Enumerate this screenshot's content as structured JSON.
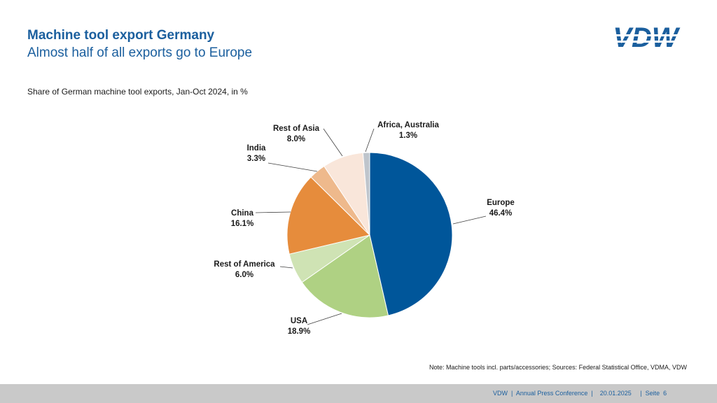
{
  "header": {
    "title": "Machine tool export Germany",
    "subtitle": "Almost half of all exports go to Europe",
    "logo_text": "VDW"
  },
  "caption": "Share of German machine tool exports, Jan-Oct 2024, in %",
  "chart_data": {
    "type": "pie",
    "title": "",
    "labels": [
      "Europe",
      "USA",
      "Rest of America",
      "China",
      "India",
      "Rest of Asia",
      "Africa, Australia"
    ],
    "values": [
      46.4,
      18.9,
      6.0,
      16.1,
      3.3,
      8.0,
      1.3
    ],
    "value_labels": [
      "46.4%",
      "18.9%",
      "6.0%",
      "16.1%",
      "3.3%",
      "8.0%",
      "1.3%"
    ],
    "colors": [
      "#00569a",
      "#afd183",
      "#cfe3b4",
      "#e68c3c",
      "#eeb98c",
      "#f9e6da",
      "#bfc5cc"
    ],
    "start": "12 o'clock",
    "direction": "clockwise"
  },
  "note": "Note: Machine tools incl. parts/accessories; Sources: Federal Statistical Office, VDMA, VDW",
  "footer": {
    "text": "VDW  |  Annual Press Conference  |    20.01.2025     |  Seite  6"
  }
}
